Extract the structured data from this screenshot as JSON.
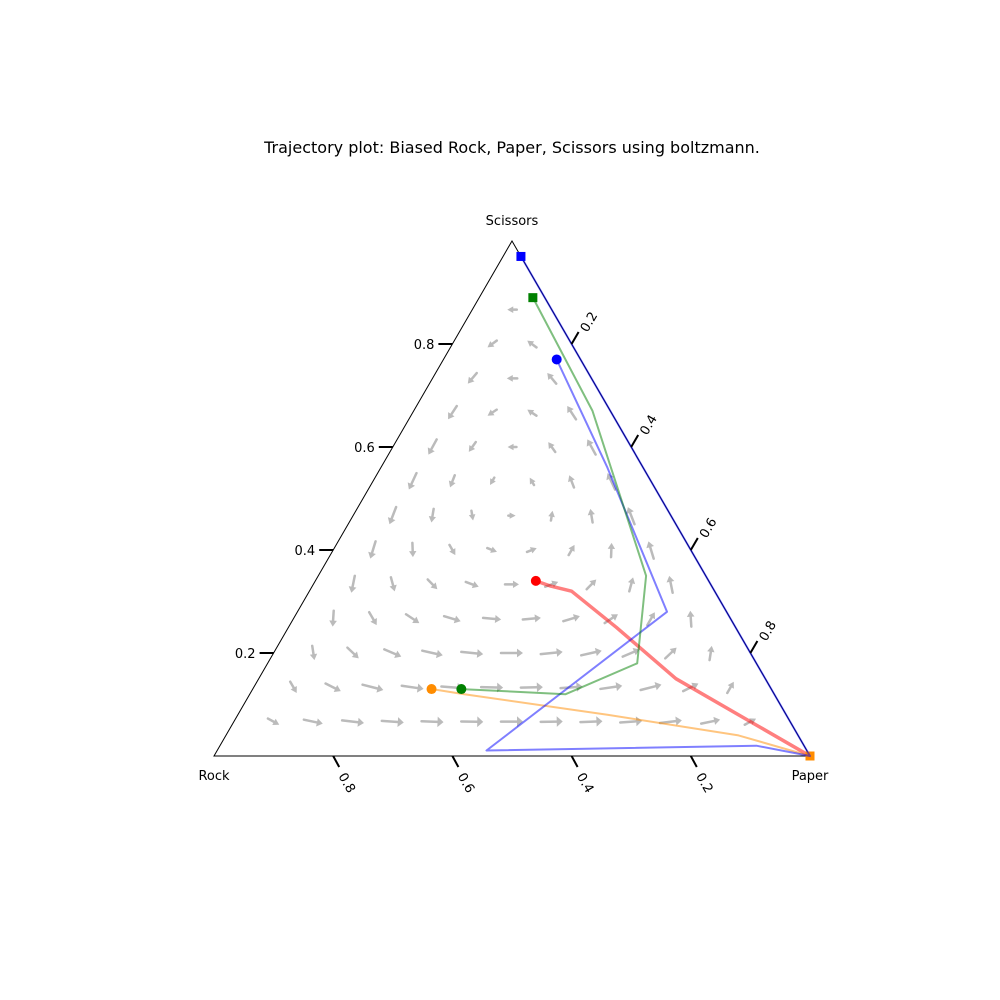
{
  "chart_data": {
    "type": "ternary-trajectory",
    "title": "Trajectory plot: Biased Rock, Paper, Scissors using boltzmann.",
    "corner_labels": {
      "top": "Scissors",
      "left": "Rock",
      "right": "Paper"
    },
    "axes": {
      "left_side_ticks": [
        "0.2",
        "0.4",
        "0.6",
        "0.8"
      ],
      "right_side_ticks": [
        "0.2",
        "0.4",
        "0.6",
        "0.8"
      ],
      "bottom_ticks": [
        "0.2",
        "0.4",
        "0.6",
        "0.8"
      ]
    },
    "vector_field_color": "#bbbbbb",
    "series": [
      {
        "color": "#ff0000",
        "start": {
          "rock": 0.29,
          "paper": 0.37,
          "scissors": 0.34
        },
        "end": {
          "rock": 0.0,
          "paper": 1.0,
          "scissors": 0.0
        },
        "path": [
          {
            "rock": 0.29,
            "paper": 0.37,
            "scissors": 0.34
          },
          {
            "rock": 0.27,
            "paper": 0.4,
            "scissors": 0.33
          },
          {
            "rock": 0.24,
            "paper": 0.44,
            "scissors": 0.32
          },
          {
            "rock": 0.2,
            "paper": 0.55,
            "scissors": 0.25
          },
          {
            "rock": 0.15,
            "paper": 0.7,
            "scissors": 0.15
          },
          {
            "rock": 0.06,
            "paper": 0.88,
            "scissors": 0.06
          },
          {
            "rock": 0.02,
            "paper": 0.96,
            "scissors": 0.02
          },
          {
            "rock": 0.0,
            "paper": 1.0,
            "scissors": 0.0
          }
        ]
      },
      {
        "color": "#ff8c00",
        "start": {
          "rock": 0.57,
          "paper": 0.3,
          "scissors": 0.13
        },
        "end": {
          "rock": 0.0,
          "paper": 1.0,
          "scissors": 0.0
        },
        "path": [
          {
            "rock": 0.57,
            "paper": 0.3,
            "scissors": 0.13
          },
          {
            "rock": 0.52,
            "paper": 0.36,
            "scissors": 0.12
          },
          {
            "rock": 0.3,
            "paper": 0.62,
            "scissors": 0.08
          },
          {
            "rock": 0.1,
            "paper": 0.86,
            "scissors": 0.04
          },
          {
            "rock": 0.0,
            "paper": 1.0,
            "scissors": 0.0
          }
        ]
      },
      {
        "color": "#0000ff",
        "start": {
          "rock": 0.04,
          "paper": 0.19,
          "scissors": 0.77
        },
        "end": {
          "rock": 0.0,
          "paper": 0.03,
          "scissors": 0.97
        },
        "path": [
          {
            "rock": 0.04,
            "paper": 0.19,
            "scissors": 0.77
          },
          {
            "rock": 0.06,
            "paper": 0.38,
            "scissors": 0.56
          },
          {
            "rock": 0.1,
            "paper": 0.62,
            "scissors": 0.28
          },
          {
            "rock": 0.55,
            "paper": 0.43,
            "scissors": 0.04
          },
          {
            "rock": 0.08,
            "paper": 0.9,
            "scissors": 0.02
          },
          {
            "rock": 0.0,
            "paper": 1.0,
            "scissors": 0.0
          },
          {
            "rock": 0.0,
            "paper": 0.03,
            "scissors": 0.97
          }
        ]
      },
      {
        "color": "#008000",
        "start": {
          "rock": 0.52,
          "paper": 0.35,
          "scissors": 0.13
        },
        "end": {
          "rock": 0.02,
          "paper": 0.09,
          "scissors": 0.89
        },
        "path": [
          {
            "rock": 0.52,
            "paper": 0.35,
            "scissors": 0.13
          },
          {
            "rock": 0.35,
            "paper": 0.53,
            "scissors": 0.12
          },
          {
            "rock": 0.2,
            "paper": 0.62,
            "scissors": 0.18
          },
          {
            "rock": 0.1,
            "paper": 0.55,
            "scissors": 0.35
          },
          {
            "rock": 0.03,
            "paper": 0.3,
            "scissors": 0.67
          },
          {
            "rock": 0.02,
            "paper": 0.09,
            "scissors": 0.89
          }
        ]
      }
    ]
  }
}
